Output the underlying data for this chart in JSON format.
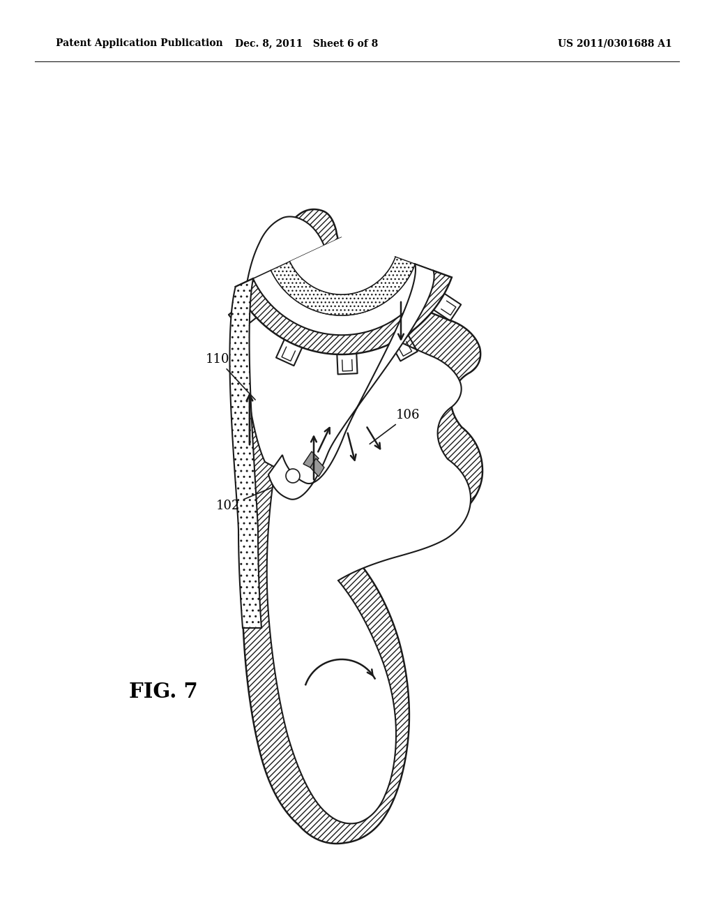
{
  "header_left": "Patent Application Publication",
  "header_center": "Dec. 8, 2011   Sheet 6 of 8",
  "header_right": "US 2011/0301688 A1",
  "figure_label": "FIG. 7",
  "bg_color": "#ffffff",
  "line_color": "#1a1a1a",
  "font_size_header": 10,
  "font_size_label": 13,
  "font_size_fig": 21
}
